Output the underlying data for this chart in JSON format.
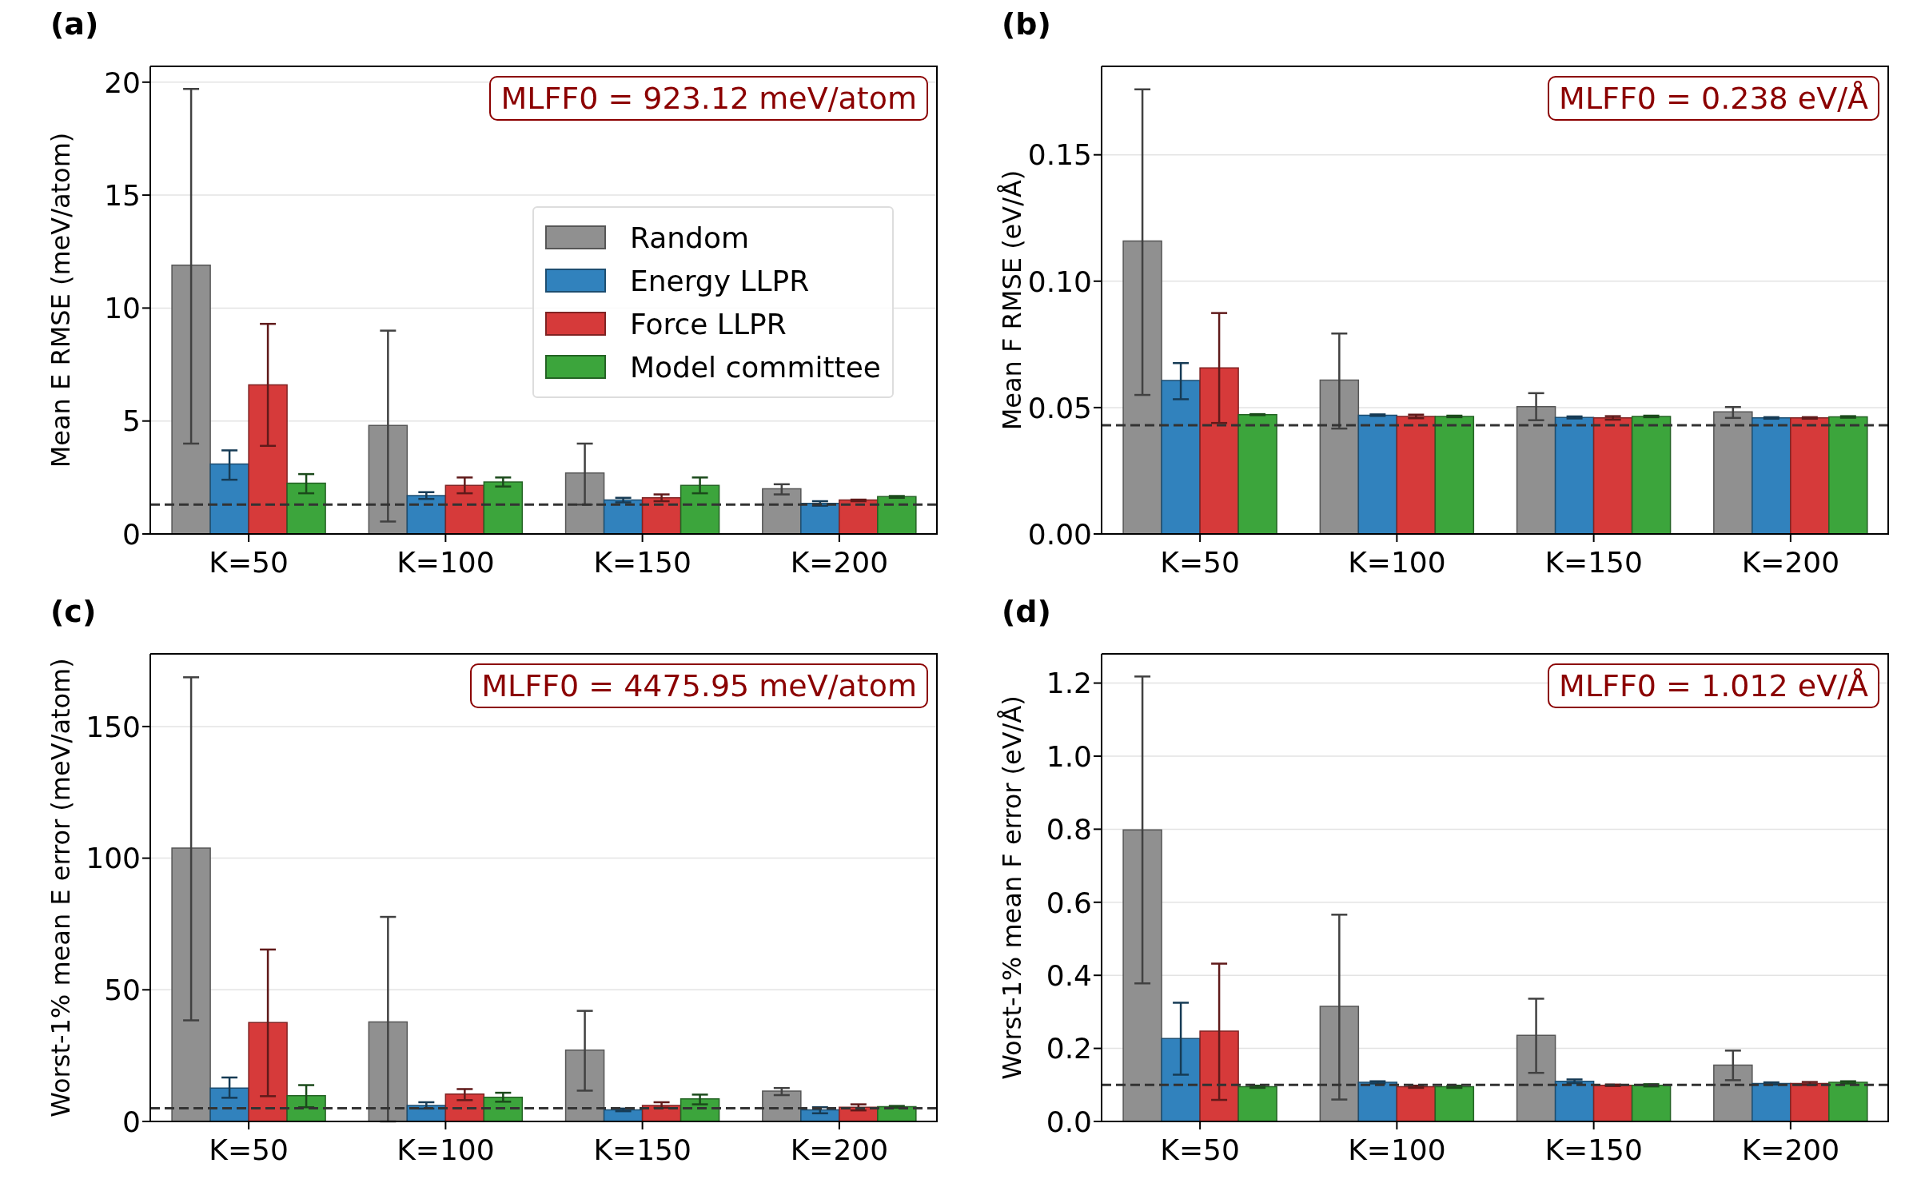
{
  "chart_data": [
    {
      "type": "bar",
      "title": "(a)",
      "ylabel": "Mean E RMSE  (meV/atom)",
      "categories": [
        "K=50",
        "K=100",
        "K=150",
        "K=200"
      ],
      "series": [
        {
          "name": "Random",
          "color": "#909090",
          "values": [
            11.9,
            4.8,
            2.7,
            2.0
          ],
          "errors": [
            [
              4.0,
              19.7
            ],
            [
              0.55,
              9.0
            ],
            [
              1.3,
              4.0
            ],
            [
              1.75,
              2.2
            ]
          ]
        },
        {
          "name": "Energy LLPR",
          "color": "#3182bd",
          "values": [
            3.1,
            1.7,
            1.5,
            1.35
          ],
          "errors": [
            [
              2.4,
              3.7
            ],
            [
              1.55,
              1.85
            ],
            [
              1.4,
              1.6
            ],
            [
              1.25,
              1.45
            ]
          ]
        },
        {
          "name": "Force LLPR",
          "color": "#d63a3a",
          "values": [
            6.6,
            2.15,
            1.6,
            1.5
          ],
          "errors": [
            [
              3.9,
              9.3
            ],
            [
              1.8,
              2.5
            ],
            [
              1.45,
              1.75
            ],
            [
              1.45,
              1.52
            ]
          ]
        },
        {
          "name": "Model committee",
          "color": "#3ca53c",
          "values": [
            2.25,
            2.3,
            2.15,
            1.65
          ],
          "errors": [
            [
              1.8,
              2.65
            ],
            [
              2.1,
              2.5
            ],
            [
              1.8,
              2.5
            ],
            [
              1.6,
              1.68
            ]
          ]
        }
      ],
      "ylim": [
        0,
        20.7
      ],
      "yticks": [
        0,
        5,
        10,
        15,
        20
      ],
      "grid": "y",
      "legend": "right",
      "ref_lines": [
        {
          "axis": "y",
          "value": 1.3,
          "color": "#333333",
          "line_style": "dashed"
        }
      ],
      "annotations": [
        "MLFF0 = 923.12 meV/atom"
      ]
    },
    {
      "type": "bar",
      "title": "(b)",
      "ylabel": "Mean F RMSE  (eV/Å)",
      "categories": [
        "K=50",
        "K=100",
        "K=150",
        "K=200"
      ],
      "series": [
        {
          "color": "#909090",
          "values": [
            0.1159,
            0.0609,
            0.0504,
            0.0483
          ],
          "errors": [
            [
              0.055,
              0.1759
            ],
            [
              0.0417,
              0.0793
            ],
            [
              0.045,
              0.0557
            ],
            [
              0.0459,
              0.0502
            ]
          ]
        },
        {
          "color": "#3182bd",
          "values": [
            0.0607,
            0.047,
            0.0461,
            0.0459
          ],
          "errors": [
            [
              0.0533,
              0.0676
            ],
            [
              0.0467,
              0.0473
            ],
            [
              0.0457,
              0.0465
            ],
            [
              0.0456,
              0.0462
            ]
          ]
        },
        {
          "color": "#d63a3a",
          "values": [
            0.0657,
            0.0465,
            0.0459,
            0.0459
          ],
          "errors": [
            [
              0.0439,
              0.0874
            ],
            [
              0.0458,
              0.0472
            ],
            [
              0.0452,
              0.0466
            ],
            [
              0.0456,
              0.0462
            ]
          ]
        },
        {
          "color": "#3ca53c",
          "values": [
            0.0472,
            0.0465,
            0.0465,
            0.0463
          ],
          "errors": [
            [
              0.047,
              0.0474
            ],
            [
              0.0462,
              0.0468
            ],
            [
              0.0462,
              0.0468
            ],
            [
              0.046,
              0.0466
            ]
          ]
        }
      ],
      "ylim": [
        0,
        0.185
      ],
      "yticks": [
        {
          "value": 0,
          "label": "0.00"
        },
        0.05,
        {
          "value": 0.1,
          "label": "0.10"
        },
        0.15
      ],
      "grid": "y",
      "ref_lines": [
        {
          "axis": "y",
          "value": 0.043,
          "color": "#333333",
          "line_style": "dashed"
        }
      ],
      "annotations": [
        "MLFF0 = 0.238 eV/Å"
      ]
    },
    {
      "type": "bar",
      "title": "(c)",
      "ylabel": "Worst-1% mean E error  (meV/atom)",
      "categories": [
        "K=50",
        "K=100",
        "K=150",
        "K=200"
      ],
      "series": [
        {
          "color": "#909090",
          "values": [
            103.8,
            37.8,
            27.1,
            11.5
          ],
          "errors": [
            [
              38.4,
              168.7
            ],
            [
              0,
              77.7
            ],
            [
              11.7,
              42.0
            ],
            [
              10.0,
              12.7
            ]
          ]
        },
        {
          "color": "#3182bd",
          "values": [
            12.7,
            6.1,
            4.4,
            4.4
          ],
          "errors": [
            [
              9.0,
              16.7
            ],
            [
              4.9,
              7.3
            ],
            [
              3.9,
              4.9
            ],
            [
              3.1,
              5.4
            ]
          ]
        },
        {
          "color": "#d63a3a",
          "values": [
            37.6,
            10.4,
            6.1,
            5.4
          ],
          "errors": [
            [
              9.6,
              65.3
            ],
            [
              8.1,
              12.3
            ],
            [
              5.2,
              7.3
            ],
            [
              4.2,
              6.5
            ]
          ]
        },
        {
          "color": "#3ca53c",
          "values": [
            9.8,
            9.2,
            8.6,
            5.6
          ],
          "errors": [
            [
              5.4,
              13.8
            ],
            [
              7.5,
              10.9
            ],
            [
              6.5,
              10.2
            ],
            [
              5.2,
              5.9
            ]
          ]
        }
      ],
      "ylim": [
        0,
        177.6
      ],
      "yticks": [
        0,
        50,
        100,
        150
      ],
      "grid": "y",
      "ref_lines": [
        {
          "axis": "y",
          "value": 5.0,
          "color": "#333333",
          "line_style": "dashed"
        }
      ],
      "annotations": [
        "MLFF0 = 4475.95 meV/atom"
      ]
    },
    {
      "type": "bar",
      "title": "(d)",
      "ylabel": "Worst-1% mean F error  (eV/Å)",
      "categories": [
        "K=50",
        "K=100",
        "K=150",
        "K=200"
      ],
      "series": [
        {
          "color": "#909090",
          "values": [
            0.798,
            0.315,
            0.236,
            0.154
          ],
          "errors": [
            [
              0.378,
              1.218
            ],
            [
              0.06,
              0.566
            ],
            [
              0.133,
              0.336
            ],
            [
              0.113,
              0.194
            ]
          ]
        },
        {
          "color": "#3182bd",
          "values": [
            0.227,
            0.107,
            0.11,
            0.104
          ],
          "errors": [
            [
              0.128,
              0.325
            ],
            [
              0.104,
              0.11
            ],
            [
              0.105,
              0.115
            ],
            [
              0.101,
              0.107
            ]
          ]
        },
        {
          "color": "#d63a3a",
          "values": [
            0.247,
            0.095,
            0.099,
            0.104
          ],
          "errors": [
            [
              0.059,
              0.432
            ],
            [
              0.092,
              0.098
            ],
            [
              0.097,
              0.101
            ],
            [
              0.1,
              0.108
            ]
          ]
        },
        {
          "color": "#3ca53c",
          "values": [
            0.095,
            0.095,
            0.099,
            0.107
          ],
          "errors": [
            [
              0.092,
              0.098
            ],
            [
              0.092,
              0.098
            ],
            [
              0.096,
              0.102
            ],
            [
              0.104,
              0.11
            ]
          ]
        }
      ],
      "ylim": [
        0,
        1.28
      ],
      "yticks": [
        {
          "value": 0,
          "label": "0.0"
        },
        0.2,
        0.4,
        0.6,
        0.8,
        {
          "value": 1,
          "label": "1.0"
        },
        1.2
      ],
      "grid": "y",
      "ref_lines": [
        {
          "axis": "y",
          "value": 0.1,
          "color": "#333333",
          "line_style": "dashed"
        }
      ],
      "annotations": [
        "MLFF0 = 1.012 eV/Å"
      ]
    }
  ]
}
